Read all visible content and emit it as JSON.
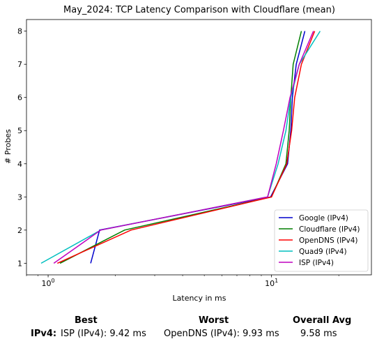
{
  "chart_data": {
    "type": "line",
    "title": "May_2024: TCP Latency Comparison with Cloudflare (mean)",
    "xlabel": "Latency in ms",
    "ylabel": "# Probes",
    "xscale": "log",
    "xlim": [
      0.8,
      28
    ],
    "ylim": [
      0.65,
      8.35
    ],
    "xticks": [
      {
        "value": 1,
        "label": "10^0"
      },
      {
        "value": 10,
        "label": "10^1"
      }
    ],
    "yticks": [
      1,
      2,
      3,
      4,
      5,
      6,
      7,
      8
    ],
    "grid": false,
    "legend_position": "lower-right",
    "series": [
      {
        "name": "Google (IPv4)",
        "color": "#0000cc",
        "points": [
          [
            1.55,
            1
          ],
          [
            1.7,
            2
          ],
          [
            9.9,
            3
          ],
          [
            11.8,
            4
          ],
          [
            12.2,
            5
          ],
          [
            12.4,
            6
          ],
          [
            12.9,
            7
          ],
          [
            14.1,
            8
          ]
        ]
      },
      {
        "name": "Cloudflare (IPv4)",
        "color": "#007f00",
        "points": [
          [
            1.13,
            1
          ],
          [
            2.2,
            2
          ],
          [
            10.0,
            3
          ],
          [
            11.6,
            4
          ],
          [
            12.0,
            5
          ],
          [
            12.2,
            6
          ],
          [
            12.5,
            7
          ],
          [
            13.6,
            8
          ]
        ]
      },
      {
        "name": "OpenDNS (IPv4)",
        "color": "#ff0000",
        "points": [
          [
            1.1,
            1
          ],
          [
            2.35,
            2
          ],
          [
            10.0,
            3
          ],
          [
            11.7,
            4
          ],
          [
            12.3,
            5
          ],
          [
            12.7,
            6
          ],
          [
            13.6,
            7
          ],
          [
            15.6,
            8
          ]
        ]
      },
      {
        "name": "Quad9 (IPv4)",
        "color": "#00bfbf",
        "points": [
          [
            0.93,
            1
          ],
          [
            1.72,
            2
          ],
          [
            9.6,
            3
          ],
          [
            10.7,
            4
          ],
          [
            11.6,
            5
          ],
          [
            12.2,
            6
          ],
          [
            13.3,
            7
          ],
          [
            16.5,
            8
          ]
        ]
      },
      {
        "name": "ISP (IPv4)",
        "color": "#bf00bf",
        "points": [
          [
            1.06,
            1
          ],
          [
            1.72,
            2
          ],
          [
            9.6,
            3
          ],
          [
            10.5,
            4
          ],
          [
            11.3,
            5
          ],
          [
            12.1,
            6
          ],
          [
            13.3,
            7
          ],
          [
            15.4,
            8
          ]
        ]
      }
    ]
  },
  "summary": {
    "best_header": "Best",
    "worst_header": "Worst",
    "avg_header": "Overall Avg",
    "row_label": "IPv4:",
    "best_value": "ISP (IPv4): 9.42 ms",
    "worst_value": "OpenDNS (IPv4): 9.93 ms",
    "avg_value": "9.58 ms"
  }
}
